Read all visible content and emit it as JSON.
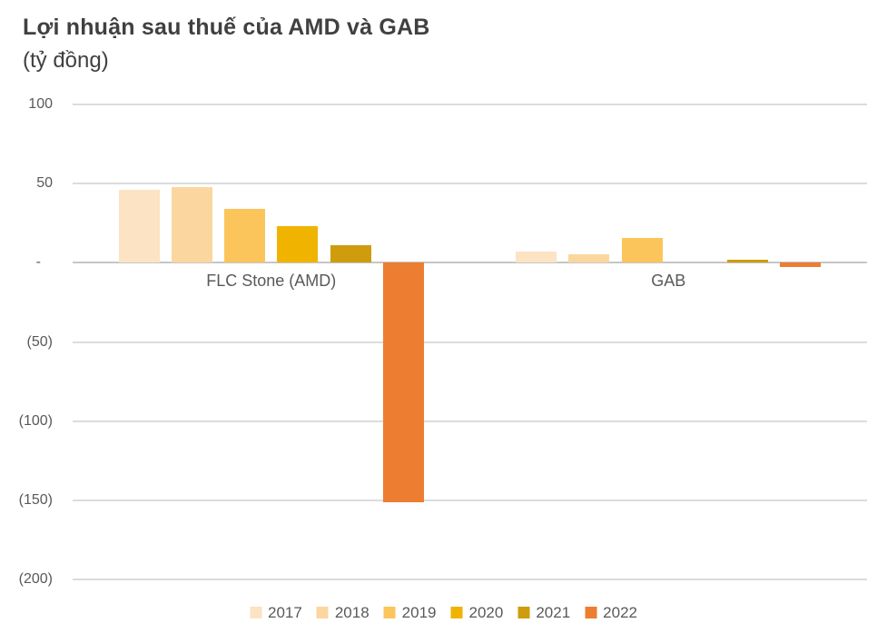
{
  "page": {
    "background": "#FFFFFF"
  },
  "header": {
    "title": "Lợi nhuận sau thuế của AMD và GAB",
    "subtitle": "(tỷ đồng)"
  },
  "chart_data": {
    "type": "bar",
    "title": "Lợi nhuận sau thuế của AMD và GAB",
    "unit_label": "(tỷ đồng)",
    "categories": [
      "FLC Stone (AMD)",
      "GAB"
    ],
    "series": [
      {
        "name": "2017",
        "color": "#FCE3C3",
        "values": [
          46,
          7
        ]
      },
      {
        "name": "2018",
        "color": "#FCD69F",
        "values": [
          48,
          5.5
        ]
      },
      {
        "name": "2019",
        "color": "#FBC55C",
        "values": [
          34,
          15.5
        ]
      },
      {
        "name": "2020",
        "color": "#F0B400",
        "values": [
          23,
          0
        ]
      },
      {
        "name": "2021",
        "color": "#CE9C0D",
        "values": [
          11,
          2
        ]
      },
      {
        "name": "2022",
        "color": "#ED7D31",
        "values": [
          -151,
          -2.5
        ]
      }
    ],
    "ylim": [
      -200,
      100
    ],
    "yticks": [
      {
        "value": 100,
        "label": "100"
      },
      {
        "value": 50,
        "label": "50"
      },
      {
        "value": 0,
        "label": "-"
      },
      {
        "value": -50,
        "label": "(50)"
      },
      {
        "value": -100,
        "label": "(100)"
      },
      {
        "value": -150,
        "label": "(150)"
      },
      {
        "value": -200,
        "label": "(200)"
      }
    ],
    "grid": true,
    "legend_position": "bottom",
    "colors": {
      "title_text": "#404040",
      "axis_text": "#595959",
      "gridline": "#DCDCDC",
      "zero_line": "#C6C6C6"
    }
  }
}
